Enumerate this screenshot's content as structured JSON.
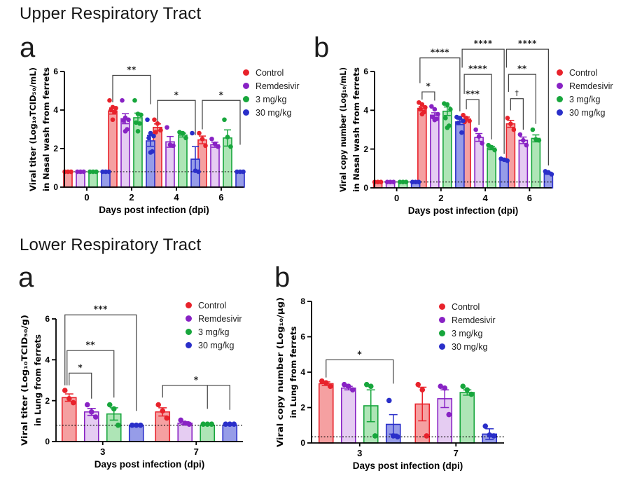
{
  "sections": [
    {
      "title": "Upper Respiratory Tract",
      "panels": [
        {
          "letter": "a"
        },
        {
          "letter": "b"
        }
      ]
    },
    {
      "title": "Lower Respiratory Tract",
      "panels": [
        {
          "letter": "a"
        },
        {
          "letter": "b"
        }
      ]
    }
  ],
  "chart_data": [
    {
      "id": "urt-viral-titer",
      "type": "bar",
      "section": "Upper Respiratory Tract",
      "panel": "a",
      "ylabel_line1": "Viral titer (Log₁₀TCID₅₀/mL)",
      "ylabel_line2": "in Nasal wash from ferrets",
      "xlabel": "Days post infection (dpi)",
      "categories": [
        "0",
        "2",
        "4",
        "6"
      ],
      "ylim": [
        0,
        6
      ],
      "yticks": [
        0,
        2,
        4,
        6
      ],
      "detection_limit": 0.8,
      "series": [
        {
          "name": "Control",
          "color": "#e8222b",
          "fill": "#f5a0a1",
          "means": [
            0.8,
            3.95,
            3.1,
            2.45
          ],
          "sem": [
            0,
            0.16,
            0.18,
            0.2
          ],
          "points": [
            [
              0.8,
              0.8,
              0.8
            ],
            [
              4.5,
              4.15,
              4.1,
              4.0,
              3.9,
              3.5
            ],
            [
              3.5,
              3.3,
              2.95,
              2.85
            ],
            [
              2.8,
              2.5,
              2.15
            ]
          ]
        },
        {
          "name": "Remdesivir",
          "color": "#8822c4",
          "fill": "#e5ccf2",
          "means": [
            0.8,
            3.55,
            2.35,
            2.2
          ],
          "sem": [
            0,
            0.26,
            0.28,
            0.13
          ],
          "points": [
            [
              0.8,
              0.8,
              0.8
            ],
            [
              4.5,
              3.6,
              3.5,
              3.45,
              3.0,
              2.9
            ],
            [
              3.1,
              2.2,
              2.15
            ],
            [
              2.5,
              2.25,
              2.1
            ]
          ]
        },
        {
          "name": "3 mg/kg",
          "color": "#17a63c",
          "fill": "#aee5b6",
          "means": [
            0.8,
            3.6,
            2.7,
            2.55
          ],
          "sem": [
            0,
            0.24,
            0.1,
            0.42
          ],
          "points": [
            [
              0.8,
              0.8,
              0.8
            ],
            [
              4.5,
              3.8,
              3.75,
              3.35,
              3.3,
              2.9
            ],
            [
              2.85,
              2.8,
              2.55
            ],
            [
              3.5,
              2.6,
              2.1
            ]
          ]
        },
        {
          "name": "30 mg/kg",
          "color": "#2a2fc9",
          "fill": "#969ce8",
          "means": [
            0.8,
            2.4,
            1.45,
            0.8
          ],
          "sem": [
            0,
            0.28,
            0.65,
            0
          ],
          "points": [
            [
              0.8,
              0.8,
              0.8
            ],
            [
              3.5,
              2.8,
              2.65,
              2.55,
              1.85,
              1.8
            ],
            [
              2.8,
              0.85,
              0.8
            ],
            [
              0.8,
              0.8,
              0.8
            ]
          ]
        }
      ],
      "significance": [
        {
          "group": 1,
          "from": 0,
          "to": 3,
          "y": 5.8,
          "drop_from": 4.4,
          "drop_to": 4.3,
          "label": "**"
        },
        {
          "group": 2,
          "from": 0,
          "to": 3,
          "y": 4.5,
          "drop_from": 3.4,
          "drop_to": 2.7,
          "label": "*"
        },
        {
          "group": 3,
          "from": 0,
          "to": 3,
          "y": 4.5,
          "drop_from": 3.0,
          "drop_to": 2.2,
          "label": "*"
        }
      ]
    },
    {
      "id": "urt-viral-copy-number",
      "type": "bar",
      "section": "Upper Respiratory Tract",
      "panel": "b",
      "ylabel_line1": "Viral copy number (Log₁₀/mL)",
      "ylabel_line2": "in Nasal wash from ferrets",
      "xlabel": "Days post infection (dpi)",
      "categories": [
        "0",
        "2",
        "4",
        "6"
      ],
      "ylim": [
        0,
        6
      ],
      "yticks": [
        0,
        2,
        4,
        6
      ],
      "detection_limit": 0.3,
      "series": [
        {
          "name": "Control",
          "color": "#e8222b",
          "fill": "#f5a0a1",
          "means": [
            0.3,
            4.1,
            3.55,
            3.3
          ],
          "sem": [
            0,
            0.1,
            0.1,
            0.18
          ],
          "points": [
            [
              0.3,
              0.3,
              0.3
            ],
            [
              4.4,
              4.3,
              4.15,
              4.05,
              3.9,
              3.8
            ],
            [
              3.75,
              3.6,
              3.45,
              3.4
            ],
            [
              3.6,
              3.3,
              3.0
            ]
          ]
        },
        {
          "name": "Remdesivir",
          "color": "#8822c4",
          "fill": "#e5ccf2",
          "means": [
            0.3,
            3.75,
            2.6,
            2.45
          ],
          "sem": [
            0,
            0.12,
            0.2,
            0.17
          ],
          "points": [
            [
              0.3,
              0.3,
              0.3
            ],
            [
              4.2,
              4.05,
              3.8,
              3.65,
              3.55,
              3.5
            ],
            [
              3.0,
              2.65,
              2.3
            ],
            [
              2.75,
              2.45,
              2.2
            ]
          ]
        },
        {
          "name": "3 mg/kg",
          "color": "#17a63c",
          "fill": "#aee5b6",
          "means": [
            0.3,
            3.95,
            2.05,
            2.55
          ],
          "sem": [
            0,
            0.22,
            0.08,
            0.18
          ],
          "points": [
            [
              0.3,
              0.3,
              0.3
            ],
            [
              4.35,
              4.3,
              4.05,
              3.6,
              3.2,
              3.1
            ],
            [
              2.2,
              2.1,
              1.95
            ],
            [
              3.0,
              2.5,
              2.45
            ]
          ]
        },
        {
          "name": "30 mg/kg",
          "color": "#2a2fc9",
          "fill": "#969ce8",
          "means": [
            0.3,
            3.4,
            1.45,
            0.75
          ],
          "sem": [
            0,
            0.14,
            0.04,
            0.06
          ],
          "points": [
            [
              0.3,
              0.3,
              0.3
            ],
            [
              3.65,
              3.6,
              3.45,
              3.35,
              2.85
            ],
            [
              1.5,
              1.45,
              1.4
            ],
            [
              0.85,
              0.8,
              0.7
            ]
          ]
        }
      ],
      "significance": [
        {
          "group": 1,
          "from": 0,
          "to": 1,
          "y": 4.95,
          "drop_from": 4.55,
          "drop_to": 4.5,
          "label": "*"
        },
        {
          "group": 1,
          "from": 0,
          "to": 3,
          "y": 6.7,
          "drop_from": 5.4,
          "drop_to": 3.95,
          "label": "****"
        },
        {
          "group": 2,
          "from": 0,
          "to": 1,
          "y": 4.55,
          "drop_from": 4.05,
          "drop_to": 3.25,
          "label": "***"
        },
        {
          "group": 2,
          "from": 0,
          "to": 2,
          "y": 5.85,
          "drop_from": 4.85,
          "drop_to": 2.5,
          "label": "****"
        },
        {
          "group": 2,
          "from": 0,
          "to": 3,
          "y": 7.15,
          "drop_from": 6.2,
          "drop_to": 1.75,
          "label": "****"
        },
        {
          "group": 3,
          "from": 0,
          "to": 1,
          "y": 4.6,
          "drop_from": 4.0,
          "drop_to": 3.0,
          "label": "†"
        },
        {
          "group": 3,
          "from": 0,
          "to": 2,
          "y": 5.85,
          "drop_from": 4.95,
          "drop_to": 3.3,
          "label": "**"
        },
        {
          "group": 3,
          "from": 0,
          "to": 3,
          "y": 7.15,
          "drop_from": 6.2,
          "drop_to": 1.15,
          "label": "****"
        }
      ]
    },
    {
      "id": "lrt-viral-titer",
      "type": "bar",
      "section": "Lower Respiratory Tract",
      "panel": "a",
      "ylabel_line1": "Viral titer (Log₁₀TCID₅₀/g)",
      "ylabel_line2": "in Lung from ferrets",
      "xlabel": "Days post infection (dpi)",
      "categories": [
        "3",
        "7"
      ],
      "ylim": [
        0,
        6
      ],
      "yticks": [
        0,
        2,
        4,
        6
      ],
      "detection_limit": 0.8,
      "series": [
        {
          "name": "Control",
          "color": "#e8222b",
          "fill": "#f5a0a1",
          "means": [
            2.15,
            1.45
          ],
          "sem": [
            0.18,
            0.2
          ],
          "points": [
            [
              2.5,
              2.1,
              1.9
            ],
            [
              1.8,
              1.5,
              1.15
            ]
          ]
        },
        {
          "name": "Remdesivir",
          "color": "#8822c4",
          "fill": "#e5ccf2",
          "means": [
            1.45,
            0.9
          ],
          "sem": [
            0.17,
            0.07
          ],
          "points": [
            [
              1.8,
              1.45,
              1.2
            ],
            [
              1.05,
              0.9,
              0.85
            ]
          ]
        },
        {
          "name": "3 mg/kg",
          "color": "#17a63c",
          "fill": "#aee5b6",
          "means": [
            1.35,
            0.8
          ],
          "sem": [
            0.3,
            0
          ],
          "points": [
            [
              1.8,
              1.6,
              0.8
            ],
            [
              0.85,
              0.85,
              0.85
            ]
          ]
        },
        {
          "name": "30 mg/kg",
          "color": "#2a2fc9",
          "fill": "#969ce8",
          "means": [
            0.8,
            0.8
          ],
          "sem": [
            0,
            0
          ],
          "points": [
            [
              0.8,
              0.8,
              0.8
            ],
            [
              0.85,
              0.85,
              0.85
            ]
          ]
        }
      ],
      "significance": [
        {
          "group": 0,
          "from": 0,
          "to": 1,
          "y": 3.35,
          "drop_from": 2.75,
          "drop_to": 2.1,
          "label": "*"
        },
        {
          "group": 0,
          "from": 0,
          "to": 2,
          "y": 4.45,
          "drop_from": 2.75,
          "drop_to": 2.15,
          "label": "**"
        },
        {
          "group": 0,
          "from": 0,
          "to": 3,
          "y": 6.2,
          "drop_from": 2.75,
          "drop_to": 1.5,
          "label": "***"
        },
        {
          "group": 1,
          "from": 0,
          "to": 3,
          "y": 2.75,
          "drop_from": 2.15,
          "drop_to": 1.55,
          "label": "*",
          "extra_legs": [
            {
              "series": 2,
              "to": 1.6
            }
          ]
        }
      ]
    },
    {
      "id": "lrt-viral-copy-number",
      "type": "bar",
      "section": "Lower Respiratory Tract",
      "panel": "b",
      "ylabel_line1": "Viral copy number (Log₁₀/μg)",
      "ylabel_line2": "in Lung from ferrets",
      "xlabel": "Days post infection (dpi)",
      "categories": [
        "3",
        "7"
      ],
      "ylim": [
        0,
        8
      ],
      "yticks": [
        0,
        2,
        4,
        6,
        8
      ],
      "detection_limit": 0.35,
      "series": [
        {
          "name": "Control",
          "color": "#e8222b",
          "fill": "#f5a0a1",
          "means": [
            3.35,
            2.2
          ],
          "sem": [
            0.1,
            0.95
          ],
          "points": [
            [
              3.5,
              3.4,
              3.2
            ],
            [
              3.3,
              3.0,
              0.4
            ]
          ]
        },
        {
          "name": "Remdesivir",
          "color": "#8822c4",
          "fill": "#e5ccf2",
          "means": [
            3.1,
            2.5
          ],
          "sem": [
            0.1,
            0.5
          ],
          "points": [
            [
              3.3,
              3.2,
              3.0
            ],
            [
              3.2,
              3.1,
              1.6
            ]
          ]
        },
        {
          "name": "3 mg/kg",
          "color": "#17a63c",
          "fill": "#aee5b6",
          "means": [
            2.1,
            2.85
          ],
          "sem": [
            0.9,
            0.15
          ],
          "points": [
            [
              3.3,
              3.2,
              0.4
            ],
            [
              3.2,
              3.0,
              2.75
            ]
          ]
        },
        {
          "name": "30 mg/kg",
          "color": "#2a2fc9",
          "fill": "#969ce8",
          "means": [
            1.05,
            0.5
          ],
          "sem": [
            0.55,
            0.3
          ],
          "points": [
            [
              2.4,
              0.4,
              0.35
            ],
            [
              0.95,
              0.45,
              0.4
            ]
          ]
        }
      ],
      "significance": [
        {
          "group": 0,
          "from": 0,
          "to": 3,
          "y": 4.7,
          "drop_from": 3.7,
          "drop_to": 3.35,
          "label": "*"
        }
      ]
    }
  ]
}
